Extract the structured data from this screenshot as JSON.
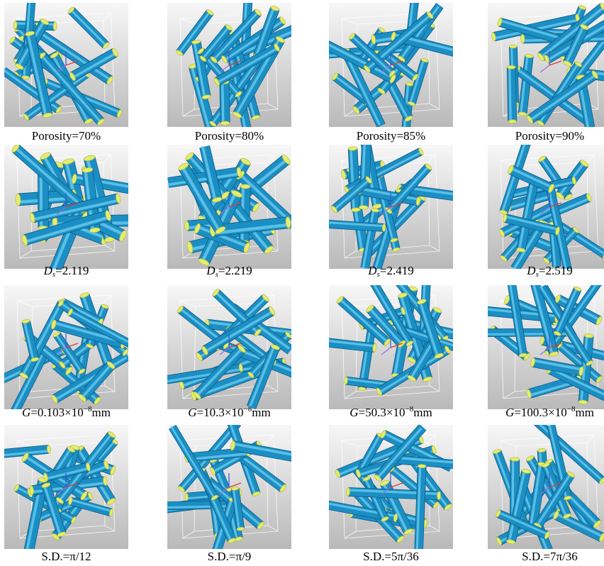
{
  "figure": {
    "rows": [
      {
        "panels": [
          {
            "caption": {
              "prefix": "Porosity=",
              "value": "70%"
            }
          },
          {
            "caption": {
              "prefix": "Porosity=",
              "value": "80%"
            }
          },
          {
            "caption": {
              "prefix": "Porosity=",
              "value": "85%"
            }
          },
          {
            "caption": {
              "prefix": "Porosity=",
              "value": "90%"
            }
          }
        ]
      },
      {
        "panels": [
          {
            "caption": {
              "symbol": "D",
              "sub": "s",
              "eq": "=",
              "value": "2.119"
            }
          },
          {
            "caption": {
              "symbol": "D",
              "sub": "s",
              "eq": "=",
              "value": "2.219"
            }
          },
          {
            "caption": {
              "symbol": "D",
              "sub": "s",
              "eq": "=",
              "value": "2.419"
            }
          },
          {
            "caption": {
              "symbol": "D",
              "sub": "s",
              "eq": "=",
              "value": "2.519"
            }
          }
        ]
      },
      {
        "panels": [
          {
            "caption": {
              "symbol": "G",
              "eq": "=",
              "value": "0.103×10",
              "sup": "−8",
              "unit": "mm"
            }
          },
          {
            "caption": {
              "symbol": "G",
              "eq": "=",
              "value": "10.3×10",
              "sup": "−8",
              "unit": "mm"
            }
          },
          {
            "caption": {
              "symbol": "G",
              "eq": "=",
              "value": "50.3×10",
              "sup": "−8",
              "unit": "mm"
            }
          },
          {
            "caption": {
              "symbol": "G",
              "eq": "=",
              "value": "100.3×10",
              "sup": "−8",
              "unit": "mm"
            }
          }
        ]
      },
      {
        "panels": [
          {
            "caption": {
              "prefix": "S.D.=",
              "value": "π/12"
            }
          },
          {
            "caption": {
              "prefix": "S.D.=",
              "value": "π/9"
            }
          },
          {
            "caption": {
              "prefix": "S.D.=",
              "value": "5π/36"
            }
          },
          {
            "caption": {
              "prefix": "S.D.=",
              "value": "7π/36"
            }
          }
        ]
      }
    ],
    "colors": {
      "fiber": "#1b8fc4",
      "fiber_highlight": "#6fd0f2",
      "fiber_shadow": "#0c5b86",
      "fiber_end": "#e6ec72",
      "fiber_end_edge": "#b9c23a",
      "background_light": "#f7f7f7",
      "background_dark": "#b9b9b9",
      "box_edge": "#ffffff"
    }
  }
}
